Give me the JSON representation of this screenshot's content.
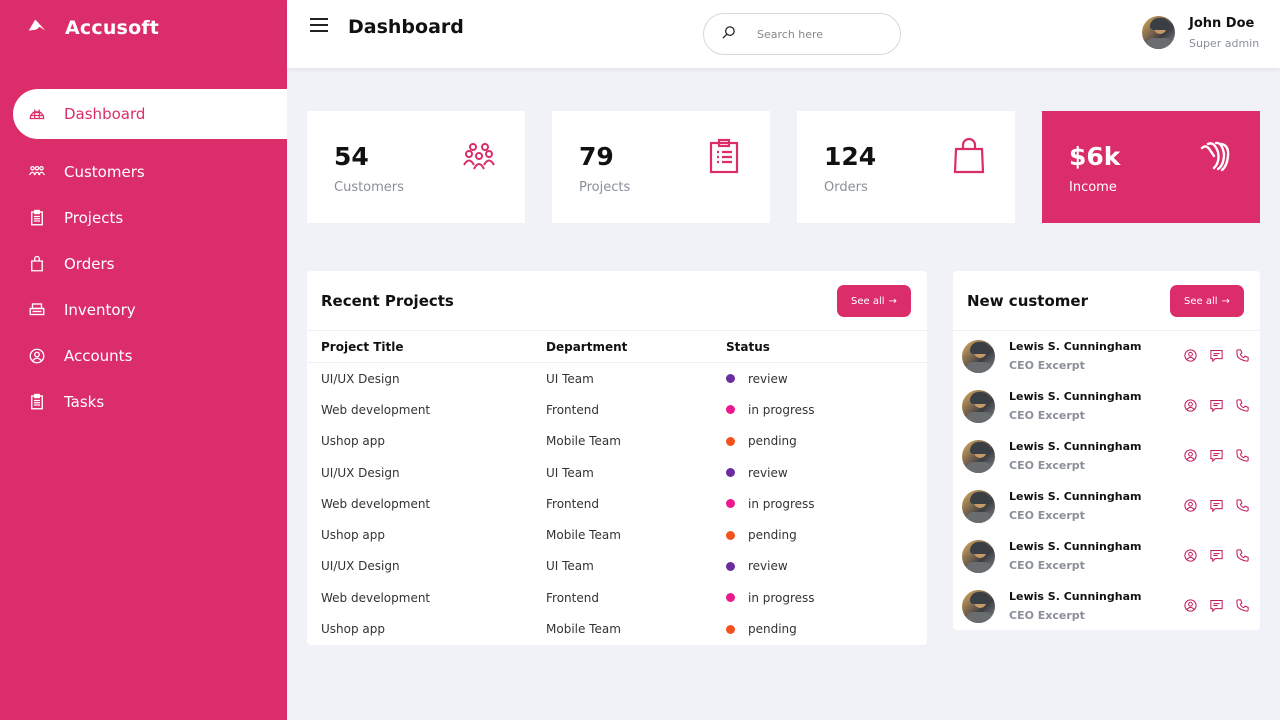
{
  "colors": {
    "accent": "#dc2d6b",
    "background": "#f0f2f7",
    "status_review": "#6a2c9e",
    "status_in_progress": "#ea1a8e",
    "status_pending": "#f4511e"
  },
  "brand": {
    "name": "Accusoft",
    "icon": "brand-logo-icon"
  },
  "sidebar": {
    "items": [
      {
        "label": "Dashboard",
        "icon": "dashboard-icon",
        "active": true
      },
      {
        "label": "Customers",
        "icon": "users-icon"
      },
      {
        "label": "Projects",
        "icon": "clipboard-icon"
      },
      {
        "label": "Orders",
        "icon": "shopping-bag-icon"
      },
      {
        "label": "Inventory",
        "icon": "printer-icon"
      },
      {
        "label": "Accounts",
        "icon": "user-circle-icon"
      },
      {
        "label": "Tasks",
        "icon": "clipboard-icon"
      }
    ]
  },
  "header": {
    "title": "Dashboard",
    "search": {
      "placeholder": "Search here",
      "value": ""
    },
    "user": {
      "name": "John Doe",
      "role": "Super admin"
    }
  },
  "stats": [
    {
      "value": "54",
      "label": "Customers",
      "icon": "users-icon"
    },
    {
      "value": "79",
      "label": "Projects",
      "icon": "clipboard-icon"
    },
    {
      "value": "124",
      "label": "Orders",
      "icon": "shopping-bag-icon"
    },
    {
      "value": "$6k",
      "label": "Income",
      "icon": "money-icon"
    }
  ],
  "recent_projects": {
    "title": "Recent Projects",
    "see_all": "See all",
    "see_all_arrow": "→",
    "columns": [
      "Project Title",
      "Department",
      "Status"
    ],
    "rows": [
      {
        "title": "UI/UX Design",
        "department": "UI Team",
        "status": "review"
      },
      {
        "title": "Web development",
        "department": "Frontend",
        "status": "in progress"
      },
      {
        "title": "Ushop app",
        "department": "Mobile Team",
        "status": "pending"
      },
      {
        "title": "UI/UX Design",
        "department": "UI Team",
        "status": "review"
      },
      {
        "title": "Web development",
        "department": "Frontend",
        "status": "in progress"
      },
      {
        "title": "Ushop app",
        "department": "Mobile Team",
        "status": "pending"
      },
      {
        "title": "UI/UX Design",
        "department": "UI Team",
        "status": "review"
      },
      {
        "title": "Web development",
        "department": "Frontend",
        "status": "in progress"
      },
      {
        "title": "Ushop app",
        "department": "Mobile Team",
        "status": "pending"
      }
    ]
  },
  "new_customers": {
    "title": "New customer",
    "see_all": "See all",
    "see_all_arrow": "→",
    "items": [
      {
        "name": "Lewis S. Cunningham",
        "role": "CEO Excerpt"
      },
      {
        "name": "Lewis S. Cunningham",
        "role": "CEO Excerpt"
      },
      {
        "name": "Lewis S. Cunningham",
        "role": "CEO Excerpt"
      },
      {
        "name": "Lewis S. Cunningham",
        "role": "CEO Excerpt"
      },
      {
        "name": "Lewis S. Cunningham",
        "role": "CEO Excerpt"
      },
      {
        "name": "Lewis S. Cunningham",
        "role": "CEO Excerpt"
      }
    ]
  }
}
